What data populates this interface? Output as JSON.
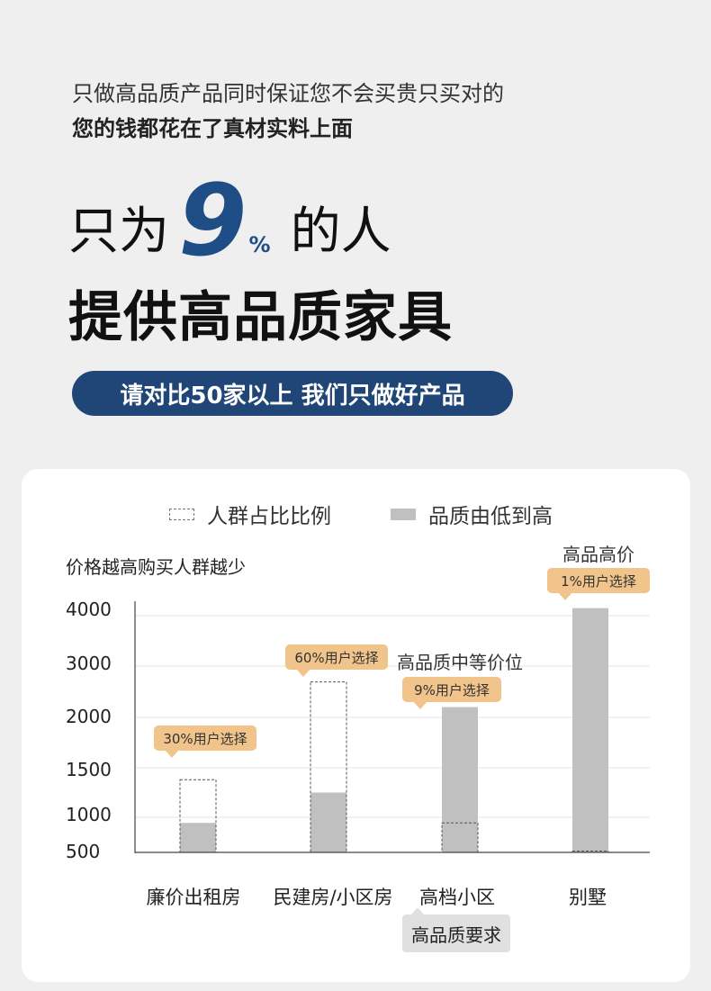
{
  "intro": {
    "line1": "只做高品质产品同时保证您不会买贵只买对的",
    "line2": "您的钱都花在了真材实料上面"
  },
  "hero": {
    "prefix": "只为",
    "number": "9",
    "percent": "%",
    "suffix": "的人",
    "line2": "提供高品质家具"
  },
  "pill": {
    "text": "请对比50家以上 我们只做好产品"
  },
  "legend": {
    "dashed": "人群占比比例",
    "filled": "品质由低到高"
  },
  "colors": {
    "accent": "#1f4e86",
    "pill": "#1f4677",
    "tag": "#f0c48a",
    "bar": "#c0c0c0"
  },
  "chart_data": {
    "type": "bar",
    "subtitle": "价格越高购买人群越少",
    "categories": [
      "廉价出租房",
      "民建房/小区房",
      "高档小区",
      "别墅"
    ],
    "y_ticks": [
      "4000",
      "3000",
      "2000",
      "1500",
      "1000",
      "500"
    ],
    "series": [
      {
        "name": "人群占比比例",
        "style": "dashed",
        "values": [
          1380,
          2690,
          920,
          520
        ]
      },
      {
        "name": "品质由低到高",
        "style": "filled",
        "values": [
          920,
          1250,
          2200,
          4150
        ]
      }
    ],
    "tags": [
      "30%用户选择",
      "60%用户选择",
      "9%用户选择",
      "1%用户选择"
    ],
    "annotations": {
      "mid": "高品质中等价位",
      "top": "高品高价"
    },
    "note": "高品质要求"
  }
}
